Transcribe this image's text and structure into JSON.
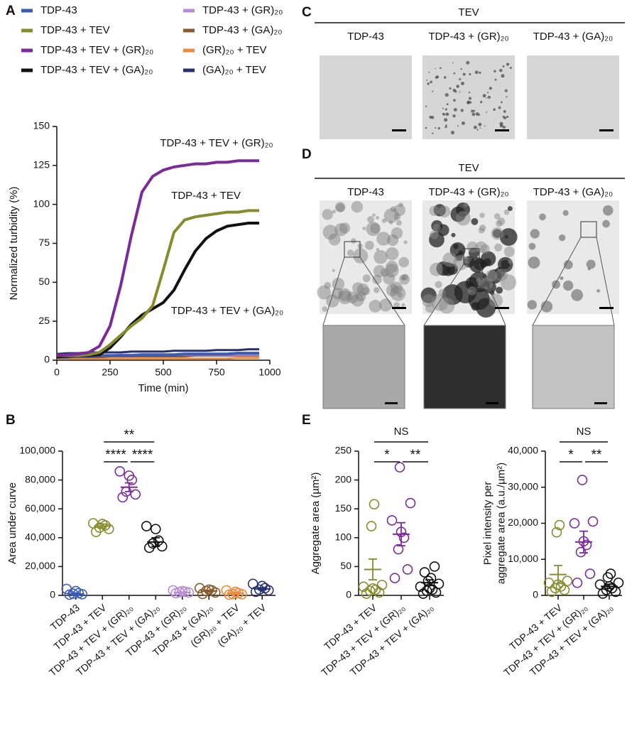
{
  "panel_labels": [
    "A",
    "B",
    "C",
    "D",
    "E"
  ],
  "image_panels": {
    "C": {
      "header": "TEV",
      "columns": [
        "TDP-43",
        "TDP-43 + (GR)₂₀",
        "TDP-43 + (GA)₂₀"
      ]
    },
    "D": {
      "header": "TEV",
      "columns": [
        "TDP-43",
        "TDP-43 + (GR)₂₀",
        "TDP-43 + (GA)₂₀"
      ]
    }
  },
  "chart_data": [
    {
      "type": "line",
      "x": [
        0,
        50,
        100,
        150,
        200,
        250,
        300,
        350,
        400,
        450,
        500,
        550,
        600,
        650,
        700,
        750,
        800,
        850,
        900,
        950
      ],
      "series": [
        {
          "name": "TDP-43",
          "color": "#3b5bb5",
          "values": [
            2,
            2,
            2.5,
            2.5,
            3,
            3,
            3,
            3,
            3.5,
            3.5,
            3.5,
            3.5,
            4,
            4,
            4,
            4,
            4,
            4.5,
            4.5,
            4.5
          ]
        },
        {
          "name": "TDP-43 + TEV",
          "color": "#858c2c",
          "values": [
            3,
            3,
            3,
            3.5,
            5,
            10,
            16,
            22,
            27,
            35,
            58,
            82,
            90,
            92,
            93,
            94,
            95,
            95,
            96,
            96
          ]
        },
        {
          "name": "TDP-43 + TEV + (GR)₂₀",
          "color": "#7b2a9c",
          "values": [
            3,
            3.5,
            4,
            5,
            9,
            22,
            48,
            80,
            108,
            118,
            122,
            124,
            125,
            126,
            126,
            127,
            127,
            128,
            128,
            128
          ]
        },
        {
          "name": "TDP-43 + TEV + (GA)₂₀",
          "color": "#111111",
          "values": [
            2,
            2.5,
            3,
            3,
            3.5,
            8,
            15,
            23,
            29,
            33,
            37,
            45,
            58,
            70,
            78,
            83,
            86,
            87,
            88,
            88
          ]
        },
        {
          "name": "TDP-43 + (GR)₂₀",
          "color": "#b98ad6",
          "values": [
            3,
            3,
            3,
            3,
            3,
            3,
            3.5,
            3.5,
            3.5,
            3.5,
            3.5,
            3.5,
            3.5,
            3.5,
            3.5,
            3.5,
            3.5,
            3.5,
            3.5,
            3.5
          ]
        },
        {
          "name": "TDP-43 + (GA)₂₀",
          "color": "#8a5a2a",
          "values": [
            2,
            2,
            2,
            2,
            2,
            2.5,
            2.5,
            2.5,
            2.5,
            2.5,
            2.5,
            2.5,
            2.5,
            3,
            3,
            3,
            3,
            3,
            3,
            3
          ]
        },
        {
          "name": "(GR)₂₀ + TEV",
          "color": "#f0883a",
          "values": [
            1,
            1,
            1,
            1,
            1,
            1,
            1,
            1,
            1,
            1,
            1,
            1,
            1,
            1,
            1,
            1,
            1,
            1.5,
            1.5,
            1.5
          ]
        },
        {
          "name": "(GA)₂₀ + TEV",
          "color": "#26306e",
          "values": [
            4,
            4.5,
            4.5,
            5,
            5,
            5,
            5,
            5.5,
            5.5,
            5.5,
            5.5,
            6,
            6,
            6,
            6,
            6.5,
            6.5,
            6.5,
            7,
            7
          ]
        }
      ],
      "xlim": [
        0,
        1000
      ],
      "xticks": [
        0,
        250,
        500,
        750,
        1000
      ],
      "ylim": [
        0,
        150
      ],
      "yticks": [
        0,
        25,
        50,
        75,
        100,
        125,
        150
      ],
      "xlabel": "Time (min)",
      "ylabel": "Normalized turbidity (%)",
      "annotations": [
        {
          "text": "TDP-43 + TEV + (GR)₂₀",
          "color": "#7b2a9c"
        },
        {
          "text": "TDP-43 + TEV",
          "color": "#b5b62e"
        },
        {
          "text": "TDP-43 + TEV + (GA)₂₀",
          "color": "#111111"
        }
      ]
    },
    {
      "type": "dot",
      "categories": [
        "TDP-43",
        "TDP-43 + TEV",
        "TDP-43 + TEV + (GR)₂₀",
        "TDP-43 + TEV + (GA)₂₀",
        "TDP-43 + (GR)₂₀",
        "TDP-43 + (GA)₂₀",
        "(GR)₂₀ + TEV",
        "(GA)₂₀ + TEV"
      ],
      "colors": [
        "#3b5bb5",
        "#858c2c",
        "#7b2a9c",
        "#111111",
        "#b98ad6",
        "#8a5a2a",
        "#f0883a",
        "#26306e"
      ],
      "points": [
        [
          500,
          800,
          1200,
          1500,
          3000,
          4500
        ],
        [
          44000,
          46000,
          47000,
          48500,
          49500,
          50000
        ],
        [
          68000,
          70000,
          72000,
          80000,
          83000,
          86000
        ],
        [
          33000,
          34000,
          36000,
          38000,
          46000,
          48000
        ],
        [
          1500,
          2000,
          2200,
          2500,
          3000,
          3500
        ],
        [
          1000,
          2000,
          3000,
          3500,
          4000,
          5000
        ],
        [
          500,
          800,
          1000,
          1500,
          2500,
          3500
        ],
        [
          2500,
          3500,
          4000,
          5000,
          6500,
          8000
        ]
      ],
      "means": [
        1000,
        48000,
        75000,
        37000,
        2000,
        3000,
        1500,
        4500
      ],
      "errors": [
        700,
        1500,
        3000,
        3000,
        400,
        600,
        500,
        800
      ],
      "ylim": [
        0,
        100000
      ],
      "yticks": [
        0,
        {
          "value": 20000,
          "label": "20,000"
        },
        {
          "value": 40000,
          "label": "40,000"
        },
        {
          "value": 60000,
          "label": "60,000"
        },
        {
          "value": 80000,
          "label": "80,000"
        },
        {
          "value": 100000,
          "label": "100,000"
        }
      ],
      "ylabel": [
        "Area under curve"
      ],
      "significance": [
        {
          "label": "**",
          "pair": [
            1,
            3
          ]
        },
        {
          "label": "****",
          "pair": [
            1,
            2
          ]
        },
        {
          "label": "****",
          "pair": [
            2,
            3
          ]
        }
      ]
    },
    {
      "type": "dot",
      "categories": [
        "TDP-43 + TEV",
        "TDP-43 + TEV + (GR)₂₀",
        "TDP-43 + TEV + (GA)₂₀"
      ],
      "colors": [
        "#858c2c",
        "#7b2a9c",
        "#111111"
      ],
      "points": [
        [
          3,
          5,
          8,
          10,
          12,
          15,
          18,
          120,
          158
        ],
        [
          30,
          45,
          80,
          100,
          110,
          130,
          160,
          222
        ],
        [
          3,
          5,
          8,
          10,
          12,
          15,
          20,
          25,
          30,
          40,
          50
        ]
      ],
      "means": [
        45,
        106,
        22
      ],
      "errors": [
        18,
        20,
        5
      ],
      "ylim": [
        0,
        250
      ],
      "yticks": [
        0,
        50,
        100,
        150,
        200,
        250
      ],
      "ylabel": [
        "Aggregate area (µm²)"
      ],
      "significance": [
        {
          "label": "NS",
          "pair": [
            0,
            2
          ]
        },
        {
          "label": "*",
          "pair": [
            0,
            1
          ]
        },
        {
          "label": "**",
          "pair": [
            1,
            2
          ]
        }
      ]
    },
    {
      "type": "dot",
      "categories": [
        "TDP-43 + TEV",
        "TDP-43 + TEV + (GR)₂₀",
        "TDP-43 + TEV + (GA)₂₀"
      ],
      "colors": [
        "#858c2c",
        "#7b2a9c",
        "#111111"
      ],
      "points": [
        [
          1000,
          1500,
          2000,
          2500,
          3000,
          3500,
          4000,
          17500,
          19500
        ],
        [
          3500,
          6000,
          12000,
          14000,
          15000,
          20000,
          20500,
          32000
        ],
        [
          500,
          1000,
          1500,
          2000,
          2500,
          3000,
          3500,
          5000,
          6000
        ]
      ],
      "means": [
        5800,
        14800,
        2500
      ],
      "errors": [
        2500,
        3000,
        600
      ],
      "ylim": [
        0,
        40000
      ],
      "yticks": [
        0,
        {
          "value": 10000,
          "label": "10,000"
        },
        {
          "value": 20000,
          "label": "20,000"
        },
        {
          "value": 30000,
          "label": "30,000"
        },
        {
          "value": 40000,
          "label": "40,000"
        }
      ],
      "ylabel": [
        "Pixel intensity per",
        "aggregate area (a.u./µm²)"
      ],
      "significance": [
        {
          "label": "NS",
          "pair": [
            0,
            2
          ]
        },
        {
          "label": "*",
          "pair": [
            0,
            1
          ]
        },
        {
          "label": "**",
          "pair": [
            1,
            2
          ]
        }
      ]
    }
  ]
}
